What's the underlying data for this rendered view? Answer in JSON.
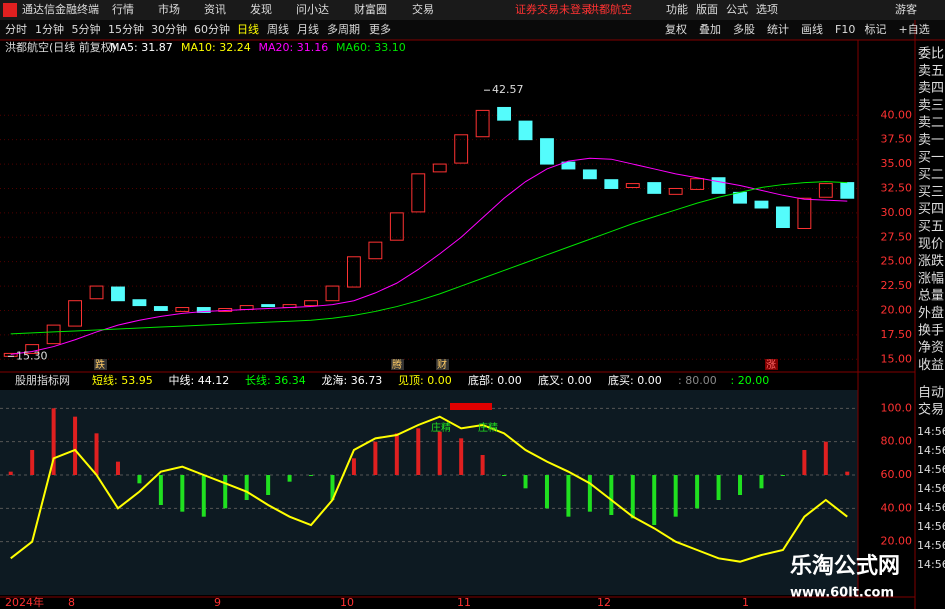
{
  "title_bar": {
    "app": "通达信金融终端",
    "menu": [
      "行情",
      "市场",
      "资讯",
      "发现",
      "问小达",
      "财富圈",
      "交易"
    ],
    "notice": "证券交易未登录",
    "stock": "洪都航空",
    "right_menu": [
      "功能",
      "版面",
      "公式",
      "选项"
    ],
    "user": "游客"
  },
  "toolbar": {
    "periods": [
      "分时",
      "1分钟",
      "5分钟",
      "15分钟",
      "30分钟",
      "60分钟",
      "日线",
      "周线",
      "月线",
      "多周期",
      "更多"
    ],
    "tools": [
      "复权",
      "叠加",
      "多股",
      "统计",
      "画线",
      "F10",
      "标记",
      "+自选"
    ]
  },
  "chart_data": [
    {
      "type": "candlestick",
      "title": "洪都航空(日线 前复权)",
      "legend": [
        {
          "name": "MA5: 31.87",
          "color": "#ffffff"
        },
        {
          "name": "MA10: 32.24",
          "color": "#ffff00"
        },
        {
          "name": "MA20: 31.16",
          "color": "#ff00ff"
        },
        {
          "name": "MA60: 33.10",
          "color": "#00e600"
        }
      ],
      "open": [
        15.3,
        15.6,
        16.6,
        18.4,
        21.2,
        22.4,
        21.1,
        20.4,
        19.9,
        20.3,
        19.9,
        20.1,
        20.6,
        20.3,
        20.5,
        21.0,
        22.4,
        25.3,
        27.2,
        30.1,
        34.2,
        35.1,
        37.8,
        40.8,
        39.4,
        37.6,
        35.2,
        34.4,
        33.4,
        32.6,
        33.1,
        31.9,
        32.4,
        33.6,
        32.1,
        31.2,
        30.6,
        28.4,
        31.6,
        33.1
      ],
      "close": [
        15.6,
        16.5,
        18.5,
        21.0,
        22.5,
        21.0,
        20.5,
        20.0,
        20.3,
        19.8,
        20.2,
        20.5,
        20.4,
        20.6,
        21.0,
        22.5,
        25.5,
        27.0,
        30.0,
        34.0,
        35.0,
        38.0,
        40.5,
        39.5,
        37.5,
        35.0,
        34.5,
        33.5,
        32.5,
        33.0,
        32.0,
        32.5,
        33.5,
        32.0,
        31.0,
        30.5,
        28.5,
        31.5,
        33.0,
        31.5
      ],
      "series": [
        {
          "name": "MA20",
          "color": "#ff00ff",
          "values": [
            15.5,
            15.8,
            16.3,
            17.0,
            17.8,
            18.5,
            19.0,
            19.4,
            19.7,
            19.9,
            20.0,
            20.1,
            20.2,
            20.3,
            20.4,
            20.6,
            21.0,
            21.8,
            22.8,
            24.2,
            25.8,
            27.5,
            29.5,
            31.5,
            33.2,
            34.5,
            35.3,
            35.6,
            35.5,
            35.0,
            34.5,
            34.0,
            33.6,
            33.2,
            32.8,
            32.3,
            31.8,
            31.4,
            31.3,
            31.2
          ]
        },
        {
          "name": "MA60",
          "color": "#00e600",
          "values": [
            17.6,
            17.7,
            17.8,
            17.9,
            18.0,
            18.1,
            18.2,
            18.3,
            18.4,
            18.5,
            18.6,
            18.7,
            18.8,
            18.9,
            19.0,
            19.2,
            19.5,
            19.9,
            20.4,
            21.0,
            21.7,
            22.5,
            23.3,
            24.1,
            24.9,
            25.7,
            26.5,
            27.3,
            28.1,
            28.9,
            29.6,
            30.3,
            31.0,
            31.6,
            32.1,
            32.6,
            32.9,
            33.1,
            33.2,
            33.1
          ]
        }
      ],
      "ylim": [
        13.9,
        47.2
      ],
      "yticks": [
        {
          "value": 15,
          "label": "15.00"
        },
        {
          "value": 17.5,
          "label": "17.50"
        },
        {
          "value": 20,
          "label": "20.00"
        },
        {
          "value": 22.5,
          "label": "22.50"
        },
        {
          "value": 25,
          "label": "25.00"
        },
        {
          "value": 27.5,
          "label": "27.50"
        },
        {
          "value": 30,
          "label": "30.00"
        },
        {
          "value": 32.5,
          "label": "32.50"
        },
        {
          "value": 35,
          "label": "35.00"
        },
        {
          "value": 37.5,
          "label": "37.50"
        },
        {
          "value": 40,
          "label": "40.00"
        }
      ],
      "annotations": [
        {
          "value": 42.57,
          "label": "42.57"
        },
        {
          "value": 15.3,
          "label": "15.30"
        }
      ],
      "markers": [
        "跌",
        "腾",
        "财",
        "涨"
      ]
    },
    {
      "type": "indicator",
      "title": "股朋指标网",
      "legend": [
        {
          "name": "短线: 53.95",
          "color": "#ffff00"
        },
        {
          "name": "中线: 44.12",
          "color": "#ffffff"
        },
        {
          "name": "长线: 36.34",
          "color": "#00ff00"
        },
        {
          "name": "龙海: 36.73",
          "color": "#ffffff"
        },
        {
          "name": "见顶: 0.00",
          "color": "#ffff00"
        },
        {
          "name": "底部: 0.00",
          "color": "#ffffff"
        },
        {
          "name": "底叉: 0.00",
          "color": "#ffffff"
        },
        {
          "name": "底买: 0.00",
          "color": "#ffffff"
        },
        {
          "name": ": 80.00",
          "color": "#888888"
        },
        {
          "name": ": 20.00",
          "color": "#00ff00"
        }
      ],
      "bars": [
        62,
        75,
        100,
        95,
        85,
        68,
        55,
        42,
        38,
        35,
        40,
        45,
        48,
        56,
        60,
        45,
        70,
        80,
        85,
        88,
        86,
        82,
        72,
        60,
        52,
        40,
        35,
        38,
        36,
        34,
        30,
        35,
        40,
        45,
        48,
        52,
        60,
        75,
        80,
        62
      ],
      "line": [
        10,
        20,
        70,
        75,
        60,
        40,
        50,
        62,
        65,
        60,
        55,
        50,
        42,
        35,
        30,
        45,
        75,
        82,
        84,
        90,
        95,
        88,
        90,
        85,
        75,
        68,
        62,
        55,
        45,
        35,
        28,
        20,
        15,
        10,
        8,
        12,
        15,
        35,
        45,
        35
      ],
      "ylim": [
        -12,
        111
      ],
      "yticks": [
        {
          "value": 20,
          "label": "20.00"
        },
        {
          "value": 40,
          "label": "40.00"
        },
        {
          "value": 60,
          "label": "60.00"
        },
        {
          "value": 80,
          "label": "80.00"
        },
        {
          "value": 100,
          "label": "100.0"
        }
      ],
      "signals": [
        "庄精",
        "庄精"
      ]
    }
  ],
  "date_labels": [
    "2024年",
    "8",
    "9",
    "10",
    "11",
    "12",
    "1"
  ],
  "side_panel": {
    "labels": [
      "委比",
      "卖五",
      "卖四",
      "卖三",
      "卖二",
      "卖一",
      "买一",
      "买二",
      "买三",
      "买四",
      "买五",
      "现价",
      "涨跌",
      "涨幅",
      "总量",
      "外盘",
      "换手",
      "净资",
      "收益"
    ],
    "trade": [
      "自动",
      "交易"
    ],
    "times": [
      "14:56",
      "14:56",
      "14:56",
      "14:56",
      "14:56",
      "14:56",
      "14:56",
      "14:56"
    ]
  },
  "watermark": {
    "name": "乐淘公式网",
    "url": "www.60lt.com"
  }
}
